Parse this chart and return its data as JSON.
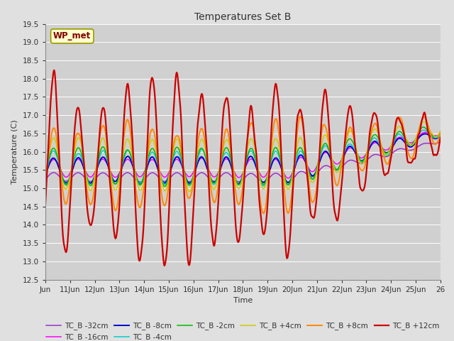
{
  "title": "Temperatures Set B",
  "xlabel": "Time",
  "ylabel": "Temperature (C)",
  "ylim": [
    12.5,
    19.5
  ],
  "background_color": "#e0e0e0",
  "plot_bg_color": "#d0d0d0",
  "grid_color": "#ffffff",
  "colors": {
    "TC_B -32cm": "#9933cc",
    "TC_B -16cm": "#ff00ff",
    "TC_B -8cm": "#0000cc",
    "TC_B -4cm": "#00cccc",
    "TC_B -2cm": "#00bb00",
    "TC_B +4cm": "#cccc00",
    "TC_B +8cm": "#ff8800",
    "TC_B +12cm": "#cc0000"
  },
  "lws": {
    "TC_B -32cm": 1.1,
    "TC_B -16cm": 1.1,
    "TC_B -8cm": 1.4,
    "TC_B -4cm": 1.1,
    "TC_B -2cm": 1.1,
    "TC_B +4cm": 1.1,
    "TC_B +8cm": 1.4,
    "TC_B +12cm": 1.6
  },
  "xtick_labels": [
    "Jun",
    "11Jun",
    "12Jun",
    "13Jun",
    "14Jun",
    "15Jun",
    "16Jun",
    "17Jun",
    "18Jun",
    "19Jun",
    "20Jun",
    "21Jun",
    "22Jun",
    "23Jun",
    "24Jun",
    "25Jun",
    "26"
  ],
  "ytick_values": [
    12.5,
    13.0,
    13.5,
    14.0,
    14.5,
    15.0,
    15.5,
    16.0,
    16.5,
    17.0,
    17.5,
    18.0,
    18.5,
    19.0,
    19.5
  ],
  "legend_label": "WP_met",
  "legend_box_color": "#ffffcc",
  "legend_text_color": "#800000",
  "figsize": [
    6.4,
    4.8
  ],
  "dpi": 100
}
